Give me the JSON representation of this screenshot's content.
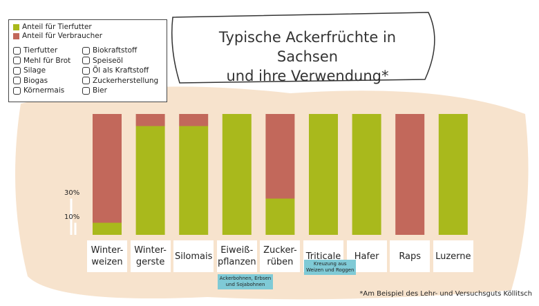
{
  "chart_data": {
    "type": "stacked-bar",
    "title": "Typische Ackerfrüchte in Sachsen\nund ihre Verwendung*",
    "categories": [
      "Winter-\nweizen",
      "Winter-\ngerste",
      "Silomais",
      "Eiweiß-\npflanzen",
      "Zucker-\nrüben",
      "Triticale",
      "Hafer",
      "Raps",
      "Luzerne"
    ],
    "series": [
      {
        "name": "Anteil für Tierfutter",
        "color": "#a9b91c",
        "values": [
          10,
          90,
          90,
          100,
          30,
          100,
          100,
          0,
          100
        ]
      },
      {
        "name": "Anteil für Verbraucher",
        "color": "#c2685b",
        "values": [
          90,
          10,
          10,
          0,
          70,
          0,
          0,
          100,
          0
        ]
      }
    ],
    "ylim": [
      0,
      100
    ],
    "yticks": [
      {
        "value": 30,
        "label": "30%"
      },
      {
        "value": 10,
        "label": "10%"
      }
    ],
    "uses": [
      "Tierfutter",
      "Mehl für Brot",
      "Silage",
      "Biogas",
      "Körnermais",
      "Biokraftstoff",
      "Speiseöl",
      "Öl als Kraftstoff",
      "Zuckerherstellung",
      "Bier"
    ],
    "annotations": [
      "Ackerbohnen, Erbsen\nund Sojabohnen",
      "Kreuzung aus\nWeizen und Roggen"
    ],
    "footnote": "*Am Beispiel des Lehr- und Versuchsguts Köllitsch"
  }
}
